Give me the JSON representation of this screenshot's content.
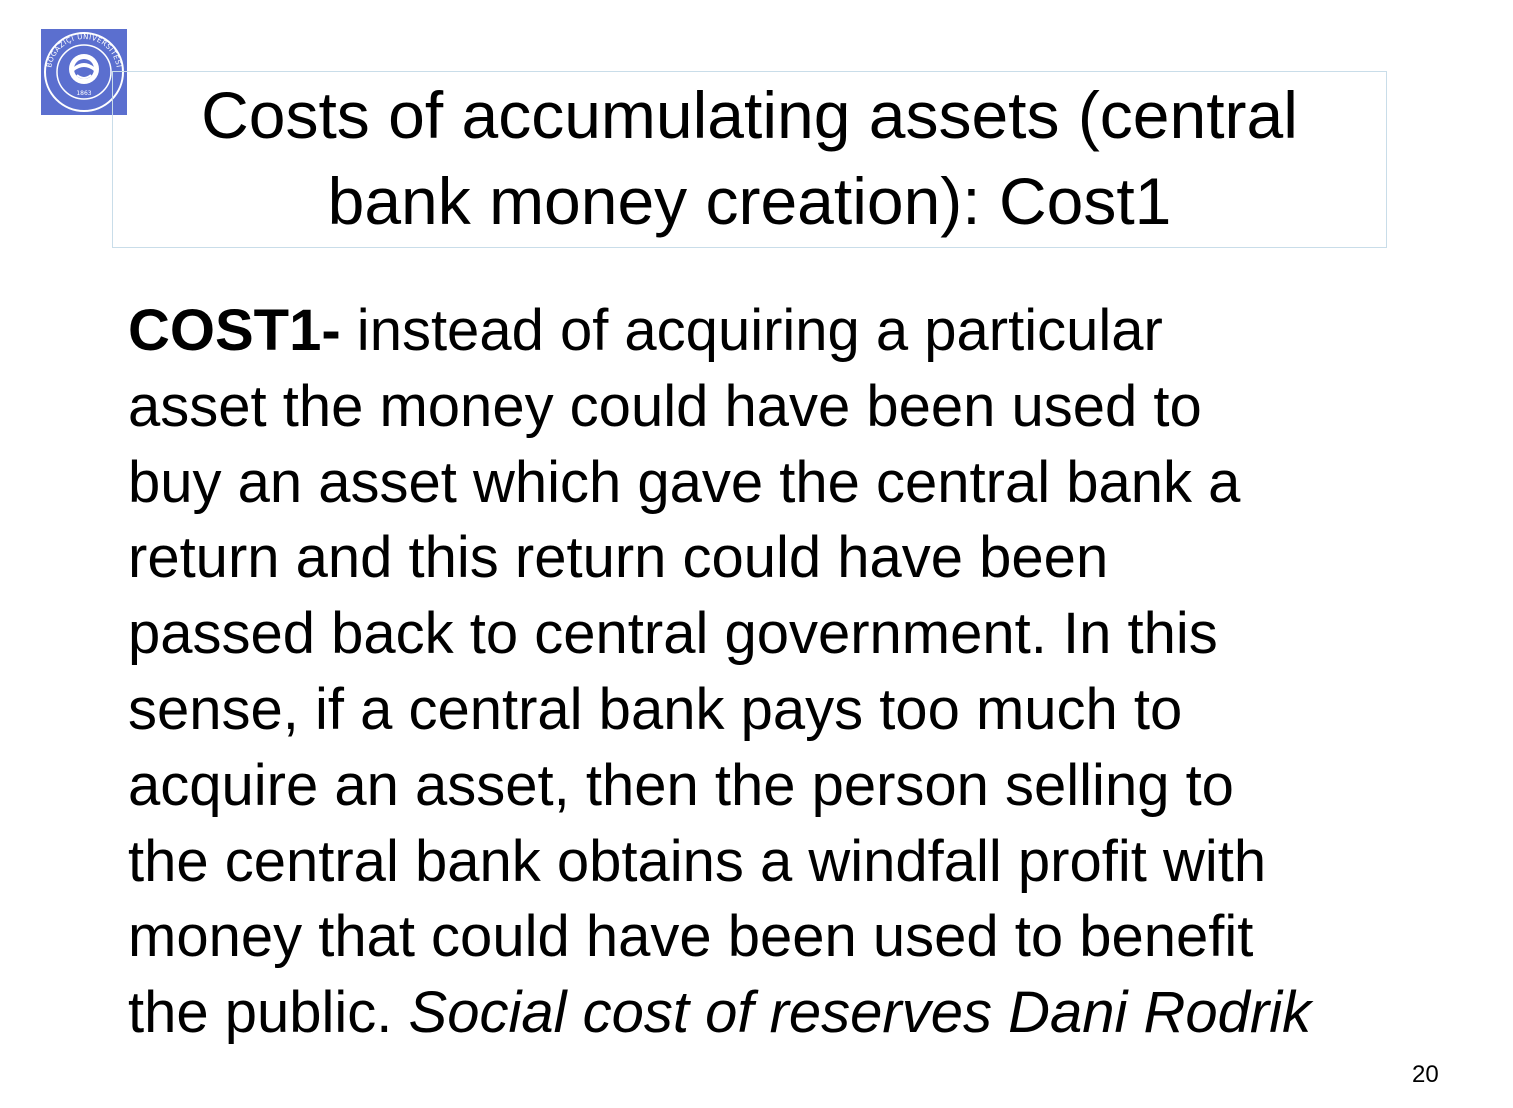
{
  "logo": {
    "ring_text": "BOĞAZİÇİ ÜNİVERSİTESİ",
    "year": "1863",
    "color": "#5b6fcf"
  },
  "title": {
    "line1": "Costs of accumulating assets (central",
    "line2": "bank money creation): Cost1"
  },
  "body": {
    "lead_bold": "COST1-",
    "line1_rest": " instead of acquiring a particular",
    "line2": "asset the money could have been used to",
    "line3": "buy an asset which gave the central bank a",
    "line4": "return and this return could have been",
    "line5": "passed back to central government. In this",
    "line6": "sense, if a central bank pays too much to",
    "line7": "acquire an asset, then the person selling to",
    "line8": "the central bank obtains a windfall profit with",
    "line9": "money that could have been used to benefit",
    "line10_plain": "the public. ",
    "citation_italic": "Social cost of reserves Dani Rodrik"
  },
  "page_number": "20"
}
